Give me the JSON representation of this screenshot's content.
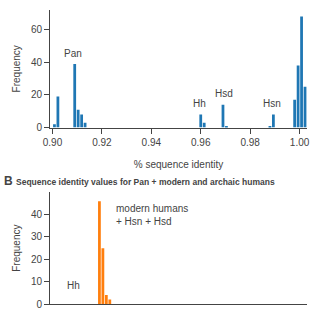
{
  "chart_data": [
    {
      "type": "bar",
      "xlabel": "% sequence identity",
      "ylabel": "Frequency",
      "x": [
        0.9008,
        0.9022,
        0.909,
        0.9104,
        0.9118,
        0.9132,
        0.96,
        0.9614,
        0.969,
        0.9704,
        0.988,
        0.9894,
        0.998,
        0.9994,
        1.0008,
        1.0022
      ],
      "values": [
        2,
        19,
        39,
        11,
        8,
        3,
        8,
        3,
        14,
        1,
        1,
        8,
        17,
        38,
        68,
        25
      ],
      "xlim": [
        0.899,
        1.003
      ],
      "ylim": [
        0,
        72
      ],
      "xticks": [
        {
          "value": 0.9,
          "label": "0.90"
        },
        0.92,
        0.94,
        0.96,
        0.98,
        {
          "value": 1,
          "label": "1.00"
        }
      ],
      "yticks": [
        0,
        20,
        40,
        60
      ],
      "grid": false,
      "annotations": [
        {
          "text": "Pan",
          "x": 0.9085,
          "y": 41
        },
        {
          "text": "Hh",
          "x": 0.9595,
          "y": 10
        },
        {
          "text": "Hsd",
          "x": 0.9695,
          "y": 16
        },
        {
          "text": "Hsn",
          "x": 0.989,
          "y": 10
        }
      ]
    },
    {
      "type": "bar",
      "title": "Sequence identity values for Pan + modern and archaic humans",
      "ylabel": "Frequency",
      "x": [
        0.919,
        0.9204,
        0.9218,
        0.9232
      ],
      "values": [
        46,
        25,
        4,
        2
      ],
      "xlim": [
        0.899,
        1.003
      ],
      "ylim": [
        0,
        50
      ],
      "yticks": [
        0,
        10,
        20,
        30,
        40
      ],
      "tick_labels": "y",
      "grid": false,
      "annotations": [
        {
          "text": "B"
        },
        {
          "text": "Hh",
          "x": 0.905,
          "y": 5
        },
        {
          "text": "modern humans\n+ Hsn + Hsd",
          "x": 0.925,
          "y": 46
        }
      ]
    }
  ]
}
